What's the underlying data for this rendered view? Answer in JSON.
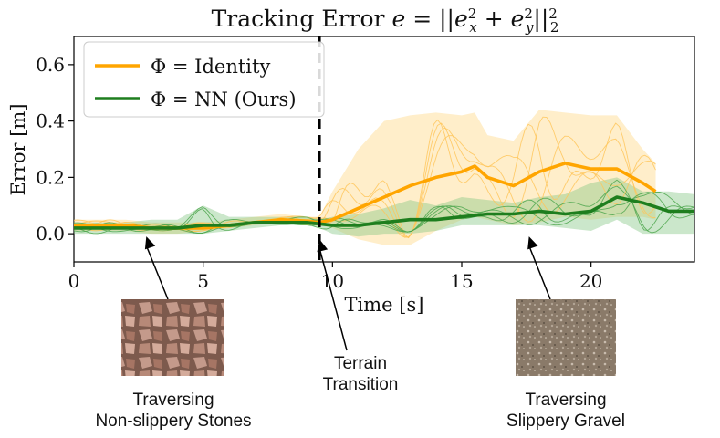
{
  "chart_data": {
    "type": "line",
    "title_prefix": "Tracking Error ",
    "title_math": "e = ||e_x^2 + e_y^2||_2^2",
    "xlabel": "Time [s]",
    "ylabel": "Error [m]",
    "xlim": [
      0,
      24
    ],
    "ylim": [
      -0.1,
      0.7
    ],
    "xticks": [
      0,
      5,
      10,
      15,
      20
    ],
    "yticks": [
      0.0,
      0.2,
      0.4,
      0.6
    ],
    "ytick_labels": [
      "0.0",
      "0.2",
      "0.4",
      "0.6"
    ],
    "grid": false,
    "legend_position": "top-left",
    "transition_line_x": 9.5,
    "series": [
      {
        "name": "Φ = Identity",
        "color": "#FFA500",
        "x": [
          0,
          1,
          2,
          3,
          4,
          5,
          6,
          7,
          8,
          9,
          9.5,
          10,
          11,
          12,
          13,
          14,
          15,
          15.5,
          16,
          17,
          18,
          19,
          20,
          21,
          22,
          22.5
        ],
        "mean": [
          0.03,
          0.03,
          0.03,
          0.02,
          0.02,
          0.02,
          0.03,
          0.04,
          0.05,
          0.045,
          0.04,
          0.05,
          0.09,
          0.13,
          0.17,
          0.2,
          0.22,
          0.24,
          0.2,
          0.17,
          0.22,
          0.25,
          0.23,
          0.23,
          0.18,
          0.15
        ],
        "lower": [
          0.01,
          0.01,
          0.01,
          0.0,
          0.0,
          0.01,
          0.02,
          0.03,
          0.04,
          0.03,
          0.03,
          0.02,
          -0.02,
          -0.04,
          -0.04,
          0.01,
          0.05,
          0.06,
          0.05,
          0.03,
          0.04,
          0.06,
          0.05,
          0.06,
          0.06,
          0.05
        ],
        "upper": [
          0.05,
          0.05,
          0.05,
          0.04,
          0.04,
          0.04,
          0.05,
          0.06,
          0.07,
          0.06,
          0.06,
          0.15,
          0.3,
          0.4,
          0.42,
          0.43,
          0.42,
          0.43,
          0.35,
          0.33,
          0.44,
          0.43,
          0.42,
          0.42,
          0.3,
          0.25
        ]
      },
      {
        "name": "Φ = NN (Ours)",
        "color": "#1E7E1E",
        "x": [
          0,
          1,
          2,
          3,
          4,
          5,
          6,
          7,
          8,
          9,
          9.5,
          10,
          11,
          12,
          13,
          14,
          15,
          16,
          17,
          18,
          19,
          20,
          21,
          22,
          23,
          24
        ],
        "mean": [
          0.02,
          0.02,
          0.02,
          0.02,
          0.02,
          0.03,
          0.03,
          0.04,
          0.04,
          0.04,
          0.035,
          0.03,
          0.03,
          0.04,
          0.05,
          0.05,
          0.06,
          0.07,
          0.07,
          0.08,
          0.07,
          0.08,
          0.13,
          0.11,
          0.08,
          0.08
        ],
        "lower": [
          0.0,
          0.0,
          0.0,
          0.0,
          0.0,
          0.0,
          0.01,
          0.02,
          0.03,
          0.03,
          0.02,
          0.0,
          -0.01,
          0.0,
          0.0,
          0.01,
          0.03,
          0.03,
          0.03,
          0.03,
          0.02,
          0.01,
          0.05,
          0.0,
          0.0,
          0.0
        ],
        "upper": [
          0.04,
          0.04,
          0.04,
          0.05,
          0.05,
          0.1,
          0.06,
          0.06,
          0.06,
          0.06,
          0.05,
          0.06,
          0.07,
          0.09,
          0.12,
          0.1,
          0.13,
          0.12,
          0.11,
          0.13,
          0.14,
          0.18,
          0.2,
          0.15,
          0.15,
          0.14
        ]
      }
    ],
    "annotations": [
      {
        "label": "Traversing\nNon-slippery Stones",
        "x": 2.8,
        "y": 0.0
      },
      {
        "label": "Terrain\nTransition",
        "x": 9.5,
        "y": -0.01
      },
      {
        "label": "Traversing\nSlippery Gravel",
        "x": 17.6,
        "y": 0.0
      }
    ]
  },
  "captions": {
    "stones_line1": "Traversing",
    "stones_line2": "Non-slippery Stones",
    "transition_line1": "Terrain",
    "transition_line2": "Transition",
    "gravel_line1": "Traversing",
    "gravel_line2": "Slippery Gravel"
  }
}
